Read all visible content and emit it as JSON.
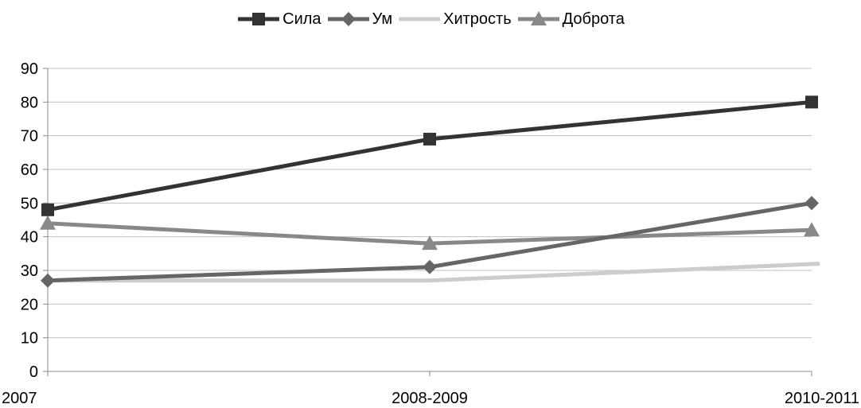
{
  "chart_data": {
    "type": "line",
    "categories": [
      "2007",
      "2008-2009",
      "2010-2011"
    ],
    "series": [
      {
        "name": "Сила",
        "values": [
          48,
          69,
          80
        ],
        "color": "#333333",
        "marker": "square"
      },
      {
        "name": "Ум",
        "values": [
          27,
          31,
          50
        ],
        "color": "#666666",
        "marker": "diamond"
      },
      {
        "name": "Хитрость",
        "values": [
          27,
          27,
          32
        ],
        "color": "#cccccc",
        "marker": "none"
      },
      {
        "name": "Доброта",
        "values": [
          44,
          38,
          42
        ],
        "color": "#888888",
        "marker": "triangle"
      }
    ],
    "yticks": [
      0,
      10,
      20,
      30,
      40,
      50,
      60,
      70,
      80,
      90
    ],
    "ylim": [
      0,
      90
    ],
    "grid": true,
    "legend_position": "top"
  }
}
